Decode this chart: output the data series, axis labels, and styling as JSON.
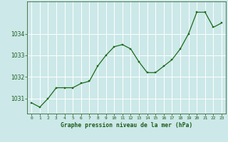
{
  "x": [
    0,
    1,
    2,
    3,
    4,
    5,
    6,
    7,
    8,
    9,
    10,
    11,
    12,
    13,
    14,
    15,
    16,
    17,
    18,
    19,
    20,
    21,
    22,
    23
  ],
  "y": [
    1030.8,
    1030.6,
    1031.0,
    1031.5,
    1031.5,
    1031.5,
    1031.7,
    1031.8,
    1032.5,
    1033.0,
    1033.4,
    1033.5,
    1033.3,
    1032.7,
    1032.2,
    1032.2,
    1032.5,
    1032.8,
    1033.3,
    1034.0,
    1035.0,
    1035.0,
    1034.3,
    1034.5
  ],
  "bg_color": "#cce8e8",
  "line_color": "#1a6b1a",
  "marker_color": "#1a6b1a",
  "grid_color": "#ffffff",
  "title": "Graphe pression niveau de la mer (hPa)",
  "text_color": "#1a5c1a",
  "ylabel_ticks": [
    1031,
    1032,
    1033,
    1034
  ],
  "ylim": [
    1030.3,
    1035.5
  ],
  "xlim": [
    -0.5,
    23.5
  ]
}
